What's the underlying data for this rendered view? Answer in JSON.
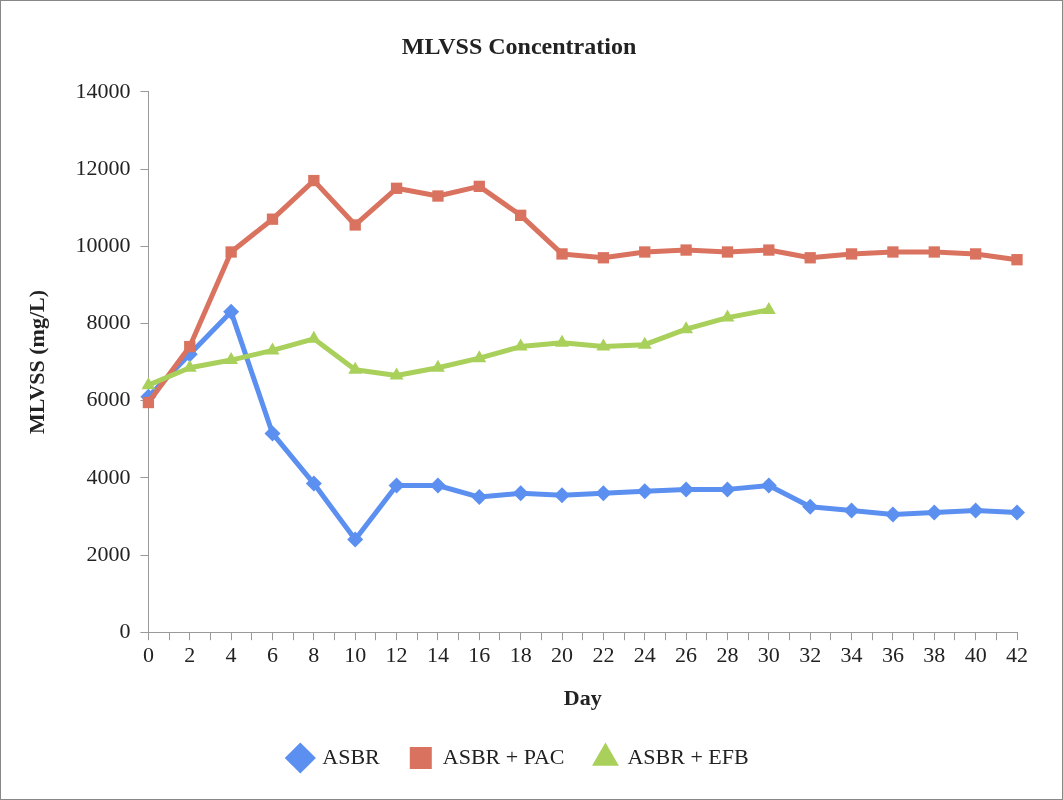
{
  "chart_data": {
    "type": "line",
    "title": "MLVSS Concentration",
    "xlabel": "Day",
    "ylabel": "MLVSS (mg/L)",
    "x": [
      0,
      2,
      4,
      6,
      8,
      10,
      12,
      14,
      16,
      18,
      20,
      22,
      24,
      26,
      28,
      30,
      32,
      34,
      36,
      38,
      40,
      42
    ],
    "xlim": [
      0,
      42
    ],
    "xticks": [
      0,
      {
        "value": 1,
        "label": null
      },
      2,
      {
        "value": 3,
        "label": null
      },
      4,
      {
        "value": 5,
        "label": null
      },
      6,
      {
        "value": 7,
        "label": null
      },
      8,
      {
        "value": 9,
        "label": null
      },
      10,
      {
        "value": 11,
        "label": null
      },
      12,
      {
        "value": 13,
        "label": null
      },
      14,
      {
        "value": 15,
        "label": null
      },
      16,
      {
        "value": 17,
        "label": null
      },
      18,
      {
        "value": 19,
        "label": null
      },
      20,
      {
        "value": 21,
        "label": null
      },
      22,
      {
        "value": 23,
        "label": null
      },
      24,
      {
        "value": 25,
        "label": null
      },
      26,
      {
        "value": 27,
        "label": null
      },
      28,
      {
        "value": 29,
        "label": null
      },
      30,
      {
        "value": 31,
        "label": null
      },
      32,
      {
        "value": 33,
        "label": null
      },
      34,
      {
        "value": 35,
        "label": null
      },
      36,
      {
        "value": 37,
        "label": null
      },
      38,
      {
        "value": 39,
        "label": null
      },
      40,
      {
        "value": 41,
        "label": null
      },
      42
    ],
    "ylim": [
      0,
      14000
    ],
    "yticks": [
      0,
      2000,
      4000,
      6000,
      8000,
      10000,
      12000,
      14000
    ],
    "grid": false,
    "legend": "bottom",
    "line_style": "solid",
    "series": [
      {
        "name": "ASBR",
        "color": "#5b8ff0",
        "marker": "diamond",
        "values": [
          6100,
          7200,
          8300,
          5150,
          3850,
          2400,
          3800,
          3800,
          3500,
          3600,
          3550,
          3600,
          3650,
          3700,
          3700,
          3800,
          3250,
          3150,
          3050,
          3100,
          3150,
          3100
        ]
      },
      {
        "name": "ASBR + PAC",
        "color": "#d9735f",
        "marker": "square",
        "values": [
          5950,
          7400,
          9850,
          10700,
          11700,
          10550,
          11500,
          11300,
          11550,
          10800,
          9800,
          9700,
          9850,
          9900,
          9850,
          9900,
          9700,
          9800,
          9850,
          9850,
          9800,
          9650
        ]
      },
      {
        "name": "ASBR + EFB",
        "color": "#a9d05a",
        "marker": "triangle",
        "values": [
          6400,
          6850,
          7050,
          7300,
          7600,
          6800,
          6650,
          6850,
          7100,
          7400,
          7500,
          7400,
          7450,
          7850,
          8150,
          8350,
          null,
          null,
          null,
          null,
          null,
          null
        ]
      }
    ]
  }
}
